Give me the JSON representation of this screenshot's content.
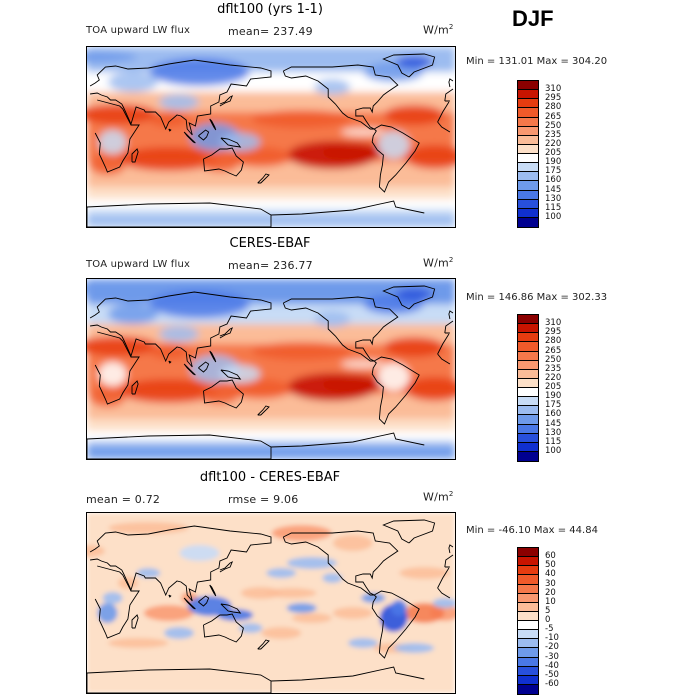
{
  "season": "DJF",
  "panels": [
    {
      "title": "dflt100 (yrs 1-1)",
      "left_label": "TOA upward LW flux",
      "stat_text": "mean= 237.49",
      "units": "W/m",
      "units_exp": "2",
      "minmax": "Min = 131.01 Max = 304.20",
      "variant": "model"
    },
    {
      "title": "CERES-EBAF",
      "left_label": "TOA upward LW flux",
      "stat_text": "mean= 236.77",
      "units": "W/m",
      "units_exp": "2",
      "minmax": "Min = 146.86 Max = 302.33",
      "variant": "obs"
    },
    {
      "title": "dflt100 - CERES-EBAF",
      "left_label": "mean =    0.72",
      "stat_text": "rmse =    9.06",
      "units": "W/m",
      "units_exp": "2",
      "minmax": "Min = -46.10 Max =  44.84",
      "variant": "diff"
    }
  ],
  "chart_data": [
    {
      "type": "heatmap",
      "title": "dflt100 (yrs 1-1)",
      "variable": "TOA upward LW flux",
      "units": "W/m^2",
      "mean": 237.49,
      "min": 131.01,
      "max": 304.2,
      "colorbar_levels": [
        310,
        295,
        280,
        265,
        250,
        235,
        220,
        205,
        190,
        175,
        160,
        145,
        130,
        115,
        100
      ],
      "colorbar_colors": [
        "#8b0000",
        "#c81400",
        "#e63c10",
        "#f05a2a",
        "#f5784a",
        "#f99870",
        "#fbbc98",
        "#fde0c8",
        "#ffffff",
        "#c8dcf6",
        "#9cbcf0",
        "#6e9aea",
        "#4a78e6",
        "#2850dc",
        "#1030d0",
        "#000090"
      ]
    },
    {
      "type": "heatmap",
      "title": "CERES-EBAF",
      "variable": "TOA upward LW flux",
      "units": "W/m^2",
      "mean": 236.77,
      "min": 146.86,
      "max": 302.33,
      "colorbar_levels": [
        310,
        295,
        280,
        265,
        250,
        235,
        220,
        205,
        190,
        175,
        160,
        145,
        130,
        115,
        100
      ],
      "colorbar_colors": [
        "#8b0000",
        "#c81400",
        "#e63c10",
        "#f05a2a",
        "#f5784a",
        "#f99870",
        "#fbbc98",
        "#fde0c8",
        "#ffffff",
        "#c8dcf6",
        "#9cbcf0",
        "#6e9aea",
        "#4a78e6",
        "#2850dc",
        "#1030d0",
        "#000090"
      ]
    },
    {
      "type": "heatmap",
      "title": "dflt100 - CERES-EBAF",
      "units": "W/m^2",
      "mean": 0.72,
      "rmse": 9.06,
      "min": -46.1,
      "max": 44.84,
      "colorbar_levels": [
        60,
        50,
        40,
        30,
        20,
        10,
        5,
        0,
        -5,
        -10,
        -20,
        -30,
        -40,
        -50,
        -60
      ],
      "colorbar_colors": [
        "#8b0000",
        "#c81400",
        "#e63c10",
        "#f05a2a",
        "#f5784a",
        "#f99870",
        "#fbbc98",
        "#fde0c8",
        "#ffffff",
        "#c8dcf6",
        "#9cbcf0",
        "#6e9aea",
        "#4a78e6",
        "#2850dc",
        "#1030d0",
        "#000090"
      ]
    }
  ]
}
